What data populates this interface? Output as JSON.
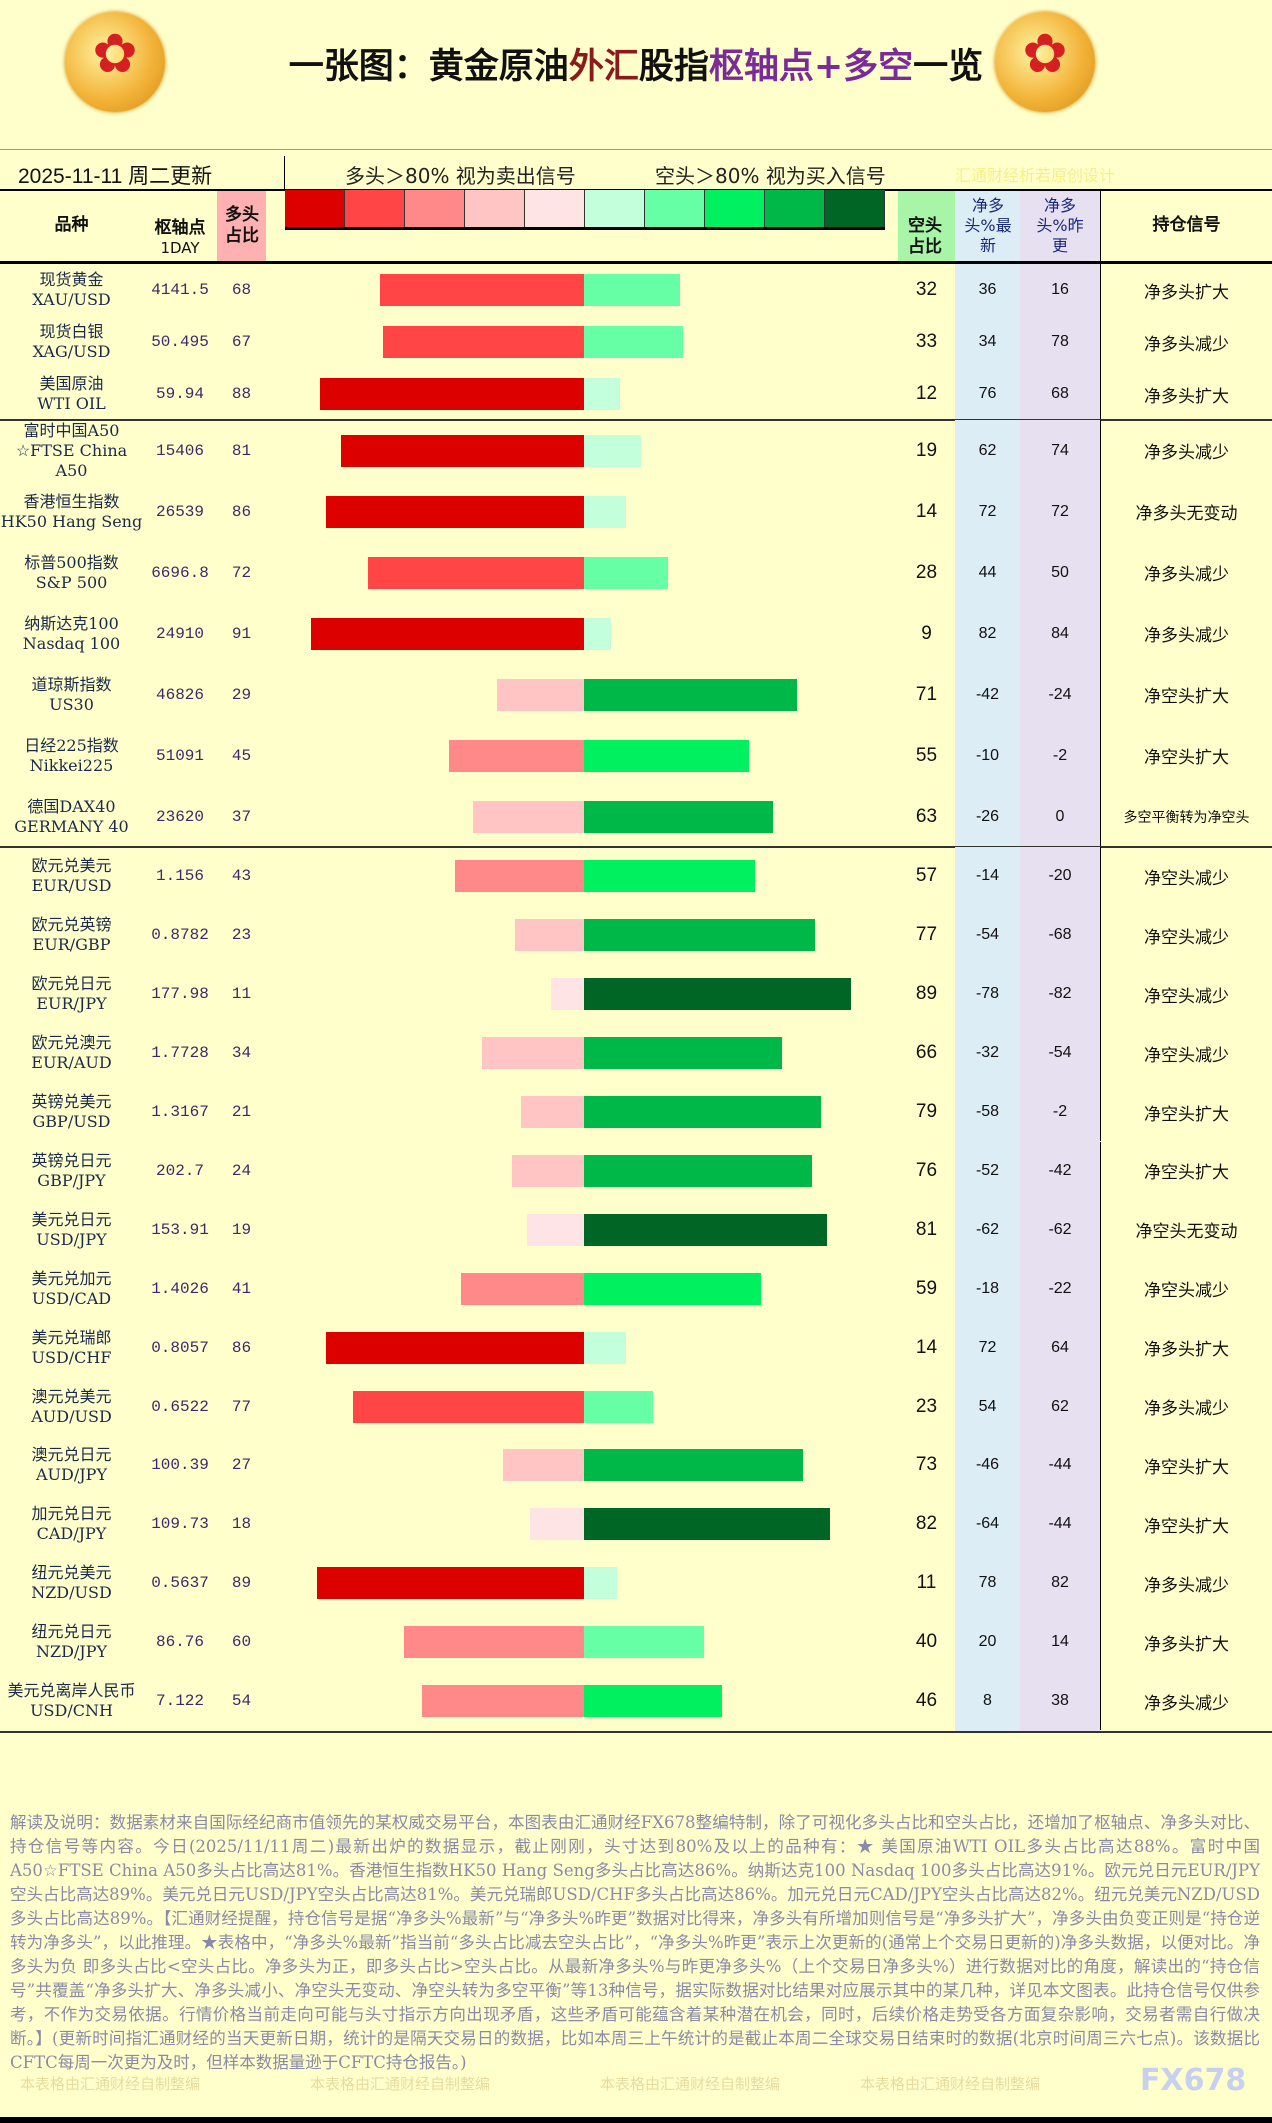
{
  "title": {
    "part1": "一张图：黄金原油",
    "part2": "外汇",
    "part3": "股指",
    "part4": "枢轴点+多空",
    "part5": "一览"
  },
  "date": "2025-11-11 周二更新",
  "legend": {
    "long_text": "多头＞80% 视为卖出信号",
    "short_text": "空头＞80% 视为买入信号",
    "credit": "汇通财经析若原创设计",
    "colors": [
      "#dd0000",
      "#ff4545",
      "#ff8888",
      "#ffc4c4",
      "#ffe4e6",
      "#c4ffdc",
      "#66ffa6",
      "#00f060",
      "#00b848",
      "#006626"
    ]
  },
  "headers": {
    "name": "品种",
    "pivot": "枢轴点",
    "pivot_sub": "1DAY",
    "long": "多头占比",
    "short": "空头占比",
    "net_latest": "净多头%最新",
    "net_prev": "净多头%昨更",
    "signal": "持仓信号"
  },
  "rows": [
    [
      "现货黄金",
      "XAU/USD",
      "4141.5",
      68,
      32,
      36,
      16,
      "净多头扩大"
    ],
    [
      "现货白银",
      "XAG/USD",
      "50.495",
      67,
      33,
      34,
      78,
      "净多头减少"
    ],
    [
      "美国原油",
      "WTI OIL",
      "59.94",
      88,
      12,
      76,
      68,
      "净多头扩大"
    ],
    [
      "富时中国A50",
      "☆FTSE China A50",
      "15406",
      81,
      19,
      62,
      74,
      "净多头减少"
    ],
    [
      "香港恒生指数",
      "HK50 Hang Seng",
      "26539",
      86,
      14,
      72,
      72,
      "净多头无变动"
    ],
    [
      "标普500指数",
      "S&P 500",
      "6696.8",
      72,
      28,
      44,
      50,
      "净多头减少"
    ],
    [
      "纳斯达克100",
      "Nasdaq 100",
      "24910",
      91,
      9,
      82,
      84,
      "净多头减少"
    ],
    [
      "道琼斯指数",
      "US30",
      "46826",
      29,
      71,
      -42,
      -24,
      "净空头扩大"
    ],
    [
      "日经225指数",
      "Nikkei225",
      "51091",
      45,
      55,
      -10,
      -2,
      "净空头扩大"
    ],
    [
      "德国DAX40",
      "GERMANY 40",
      "23620",
      37,
      63,
      -26,
      0,
      "多空平衡转为净空头"
    ],
    [
      "欧元兑美元",
      "EUR/USD",
      "1.156",
      43,
      57,
      -14,
      -20,
      "净空头减少"
    ],
    [
      "欧元兑英镑",
      "EUR/GBP",
      "0.8782",
      23,
      77,
      -54,
      -68,
      "净空头减少"
    ],
    [
      "欧元兑日元",
      "EUR/JPY",
      "177.98",
      11,
      89,
      -78,
      -82,
      "净空头减少"
    ],
    [
      "欧元兑澳元",
      "EUR/AUD",
      "1.7728",
      34,
      66,
      -32,
      -54,
      "净空头减少"
    ],
    [
      "英镑兑美元",
      "GBP/USD",
      "1.3167",
      21,
      79,
      -58,
      -2,
      "净空头扩大"
    ],
    [
      "英镑兑日元",
      "GBP/JPY",
      "202.7",
      24,
      76,
      -52,
      -42,
      "净空头扩大"
    ],
    [
      "美元兑日元",
      "USD/JPY",
      "153.91",
      19,
      81,
      -62,
      -62,
      "净空头无变动"
    ],
    [
      "美元兑加元",
      "USD/CAD",
      "1.4026",
      41,
      59,
      -18,
      -22,
      "净空头减少"
    ],
    [
      "美元兑瑞郎",
      "USD/CHF",
      "0.8057",
      86,
      14,
      72,
      64,
      "净多头扩大"
    ],
    [
      "澳元兑美元",
      "AUD/USD",
      "0.6522",
      77,
      23,
      54,
      62,
      "净多头减少"
    ],
    [
      "澳元兑日元",
      "AUD/JPY",
      "100.39",
      27,
      73,
      -46,
      -44,
      "净空头扩大"
    ],
    [
      "加元兑日元",
      "CAD/JPY",
      "109.73",
      18,
      82,
      -64,
      -44,
      "净空头扩大"
    ],
    [
      "纽元兑美元",
      "NZD/USD",
      "0.5637",
      89,
      11,
      78,
      82,
      "净多头减少"
    ],
    [
      "纽元兑日元",
      "NZD/JPY",
      "86.76",
      60,
      40,
      20,
      14,
      "净多头扩大"
    ],
    [
      "美元兑离岸人民币",
      "USD/CNH",
      "7.122",
      54,
      46,
      8,
      38,
      "净多头减少"
    ]
  ],
  "note": "解读及说明：数据素材来自国际经纪商市值领先的某权威交易平台，本图表由汇通财经FX678整编特制，除了可视化多头占比和空头占比，还增加了枢轴点、净多头对比、持仓信号等内容。今日(2025/11/11周二)最新出炉的数据显示，截止刚刚，头寸达到80%及以上的品种有：★ 美国原油WTI OIL多头占比高达88%。富时中国A50☆FTSE China A50多头占比高达81%。香港恒生指数HK50 Hang Seng多头占比高达86%。纳斯达克100 Nasdaq 100多头占比高达91%。欧元兑日元EUR/JPY空头占比高达89%。美元兑日元USD/JPY空头占比高达81%。美元兑瑞郎USD/CHF多头占比高达86%。加元兑日元CAD/JPY空头占比高达82%。纽元兑美元NZD/USD多头占比高达89%。【汇通财经提醒，持仓信号是据“净多头%最新”与“净多头%昨更”数据对比得来，净多头有所增加则信号是“净多头扩大”，净多头由负变正则是“持仓逆转为净多头”，以此推理。★表格中，“净多头%最新”指当前“多头占比减去空头占比”，“净多头%昨更”表示上次更新的(通常上个交易日更新的)净多头数据，以便对比。净多头为负 即多头占比<空头占比。净多头为正，即多头占比>空头占比。从最新净多头%与昨更净多头%（上个交易日净多头%）进行数据对比的角度，解读出的“持仓信号”共覆盖“净多头扩大、净多头减小、净空头无变动、净空头转为多空平衡”等13种信号，据实际数据对比结果对应展示其中的某几种，详见本文图表。此持仓信号仅供参考，不作为交易依据。行情价格当前走向可能与头寸指示方向出现矛盾，这些矛盾可能蕴含着某种潜在机会，同时，后续价格走势受各方面复杂影响，交易者需自行做决断。】(更新时间指汇通财经的当天更新日期，统计的是隔天交易日的数据，比如本周三上午统计的是截止本周二全球交易日结束时的数据(北京时间周三六七点)。该数据比CFTC每周一次更为及时，但样本数据量逊于CFTC持仓报告。)",
  "watermark": "本表格由汇通财经自制整编",
  "brand": "FX678"
}
